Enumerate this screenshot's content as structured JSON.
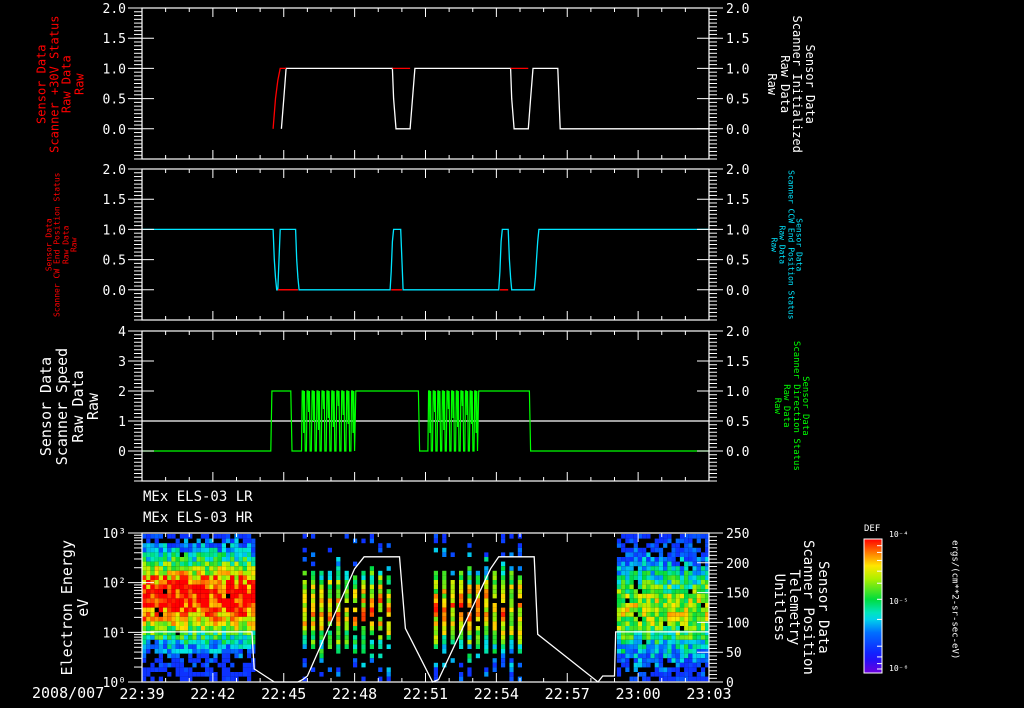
{
  "colors": {
    "background": "#000000",
    "axis": "#ffffff",
    "red": "#ff0000",
    "cyan": "#00e5ff",
    "green": "#00ff00",
    "white": "#ffffff"
  },
  "time_axis": {
    "start_label": "2008/007 22:39",
    "ticks": [
      "22:39",
      "22:42",
      "22:45",
      "22:48",
      "22:51",
      "22:54",
      "22:57",
      "23:00",
      "23:03"
    ],
    "tick_label_prefix": "2008/007",
    "range_minutes": [
      0,
      24
    ]
  },
  "spectrogram_titles": [
    "MEx ELS-03 LR",
    "MEx ELS-03 HR"
  ],
  "colorbar": {
    "title": "DEF",
    "tick_labels": [
      "10⁻⁴",
      "10⁻⁵",
      "10⁻⁶"
    ],
    "units": "ergs/(cm**2-sr-sec-eV)"
  },
  "chart_data": [
    {
      "type": "line",
      "title": "",
      "left_label": [
        "Sensor Data",
        "Scanner +30V Status",
        "Raw Data",
        "Raw"
      ],
      "left_color": "#ff0000",
      "right_label": [
        "Sensor Data",
        "Scanner Initialized",
        "Raw Data",
        "Raw"
      ],
      "right_color": "#ffffff",
      "ylim_left": [
        -0.5,
        2.0
      ],
      "ylim_right": [
        -0.5,
        2.0
      ],
      "yticks_left": [
        "0.0",
        "0.5",
        "1.0",
        "1.5",
        "2.0"
      ],
      "yticks_right": [
        "0.0",
        "0.5",
        "1.0",
        "1.5",
        "2.0"
      ],
      "series": [
        {
          "name": "Scanner +30V Status",
          "color": "#ff0000",
          "x": [
            0,
            5.55,
            5.65,
            5.75,
            5.85,
            6.1,
            10.6,
            11.35,
            15.6,
            16.35,
            17.6,
            24
          ],
          "y": [
            0,
            0,
            0.5,
            1,
            1,
            1,
            1,
            1,
            1,
            1,
            1,
            1
          ]
        },
        {
          "name": "Scanner Initialized",
          "color": "#ffffff",
          "x": [
            0,
            5.9,
            6.0,
            6.1,
            10.6,
            10.65,
            10.75,
            11.35,
            11.45,
            11.55,
            15.6,
            15.65,
            15.75,
            16.35,
            16.45,
            16.55,
            17.6,
            17.7,
            24
          ],
          "y": [
            1000000000.0,
            0,
            0.5,
            1,
            1,
            0.5,
            0,
            0,
            0.5,
            1,
            1,
            0.5,
            0,
            0,
            0.5,
            1,
            1,
            0,
            0
          ]
        }
      ]
    },
    {
      "type": "line",
      "left_label": [
        "Sensor Data",
        "Scanner CW End Position Status",
        "Raw Data",
        "Raw"
      ],
      "left_color": "#ff0000",
      "right_label": [
        "Sensor Data",
        "Scanner CCW End Position Status",
        "Raw Data",
        "Raw"
      ],
      "right_color": "#00e5ff",
      "ylim_left": [
        -0.5,
        2.0
      ],
      "ylim_right": [
        -0.5,
        2.0
      ],
      "yticks_left": [
        "0.0",
        "0.5",
        "1.0",
        "1.5",
        "2.0"
      ],
      "yticks_right": [
        "0.0",
        "0.5",
        "1.0",
        "1.5",
        "2.0"
      ],
      "series": [
        {
          "name": "Scanner CW End Position Status",
          "color": "#ff0000",
          "x": [
            5.75,
            6.6,
            10.55,
            11.0,
            15.15,
            15.5
          ],
          "y": [
            0,
            0,
            0,
            0,
            0,
            0
          ],
          "segments": [
            [
              5.75,
              6.6
            ],
            [
              10.55,
              11.0
            ],
            [
              15.15,
              15.5
            ]
          ]
        },
        {
          "name": "Scanner CCW End Position Status",
          "color": "#00e5ff",
          "x": [
            0,
            5.55,
            5.6,
            5.65,
            5.7,
            5.75,
            5.8,
            5.85,
            6.5,
            6.55,
            6.6,
            6.65,
            10.5,
            10.55,
            10.6,
            10.65,
            10.95,
            11.0,
            11.05,
            15.1,
            15.15,
            15.2,
            15.25,
            15.5,
            15.55,
            15.6,
            15.65,
            16.6,
            16.65,
            16.7,
            16.75,
            16.8,
            24
          ],
          "y": [
            1,
            1,
            0.5,
            0.2,
            0,
            0,
            0.5,
            1,
            1,
            0.5,
            0.2,
            0,
            0,
            0.3,
            0.8,
            1,
            1,
            0.5,
            0,
            0,
            0.3,
            0.8,
            1,
            1,
            0.5,
            0.2,
            0,
            0,
            0.2,
            0.5,
            0.8,
            1,
            1
          ]
        }
      ]
    },
    {
      "type": "line",
      "left_label": [
        "Sensor Data",
        "Scanner Speed",
        "Raw Data",
        "Raw"
      ],
      "left_color": "#ffffff",
      "right_label": [
        "Sensor Data",
        "Scanner Direction Status",
        "Raw Data",
        "Raw"
      ],
      "right_color": "#00ff00",
      "ylim_left": [
        -1,
        4
      ],
      "ylim_right": [
        -0.5,
        2.0
      ],
      "yticks_left": [
        "0",
        "1",
        "2",
        "3",
        "4"
      ],
      "yticks_right": [
        "0.0",
        "0.5",
        "1.0",
        "1.5",
        "2.0"
      ],
      "series": [
        {
          "name": "Scanner Speed",
          "color": "#ffffff",
          "axis": "left",
          "x": [
            0,
            24
          ],
          "y": [
            1,
            1
          ]
        },
        {
          "name": "Scanner Direction Status",
          "color": "#00ff00",
          "axis": "right",
          "x": [
            0,
            5.45,
            5.5,
            6.3,
            6.35,
            6.7,
            6.75
          ],
          "y": [
            0,
            0,
            1,
            1,
            0,
            0,
            1
          ],
          "blocks": [
            {
              "type": "level",
              "x": [
                0,
                5.45
              ],
              "v": 0
            },
            {
              "type": "level",
              "x": [
                5.5,
                6.3
              ],
              "v": 1
            },
            {
              "type": "level",
              "x": [
                6.35,
                6.75
              ],
              "v": 0
            },
            {
              "type": "osc",
              "x": [
                6.75,
                9.05
              ],
              "n": 11
            },
            {
              "type": "level",
              "x": [
                9.05,
                11.7
              ],
              "v": 1
            },
            {
              "type": "level",
              "x": [
                11.75,
                12.1
              ],
              "v": 0
            },
            {
              "type": "osc",
              "x": [
                12.1,
                14.25
              ],
              "n": 11
            },
            {
              "type": "level",
              "x": [
                14.25,
                16.4
              ],
              "v": 1
            },
            {
              "type": "level",
              "x": [
                16.45,
                24
              ],
              "v": 0
            }
          ]
        }
      ]
    },
    {
      "type": "heatmap",
      "left_label": [
        "Electron Energy",
        "eV"
      ],
      "right_label": [
        "Sensor Data",
        "Scanner Position",
        "Telemetry",
        "Unitless"
      ],
      "ylim_left": [
        1,
        1000
      ],
      "yscale_left": "log",
      "yticks_left": [
        "10⁰",
        "10¹",
        "10²",
        "10³"
      ],
      "ylim_right": [
        0,
        250
      ],
      "yticks_right": [
        "0",
        "50",
        "100",
        "150",
        "200",
        "250"
      ],
      "data_blocks": [
        {
          "x": [
            0,
            4.7
          ],
          "core_energy": [
            20,
            150
          ],
          "intensity": "high"
        },
        {
          "x": [
            6.8,
            10.6
          ],
          "core_energy": [
            10,
            100
          ],
          "intensity": "medium",
          "striped": true
        },
        {
          "x": [
            12.35,
            16.2
          ],
          "core_energy": [
            10,
            100
          ],
          "intensity": "medium",
          "striped": true
        },
        {
          "x": [
            20.1,
            24
          ],
          "core_energy": [
            10,
            100
          ],
          "intensity": "low-medium"
        }
      ],
      "position_trace": {
        "color": "#ffffff",
        "x": [
          0,
          4.65,
          4.75,
          5.6,
          6.6,
          6.8,
          7.0,
          9.0,
          9.4,
          10.9,
          11.15,
          12.3,
          12.55,
          14.75,
          15.1,
          16.6,
          16.75,
          19.3,
          19.5,
          20.0,
          20.05,
          24
        ],
        "y": [
          84,
          84,
          22,
          0,
          0,
          4,
          10,
          190,
          210,
          210,
          90,
          0,
          4,
          190,
          210,
          210,
          80,
          0,
          10,
          10,
          84,
          84
        ]
      }
    }
  ]
}
